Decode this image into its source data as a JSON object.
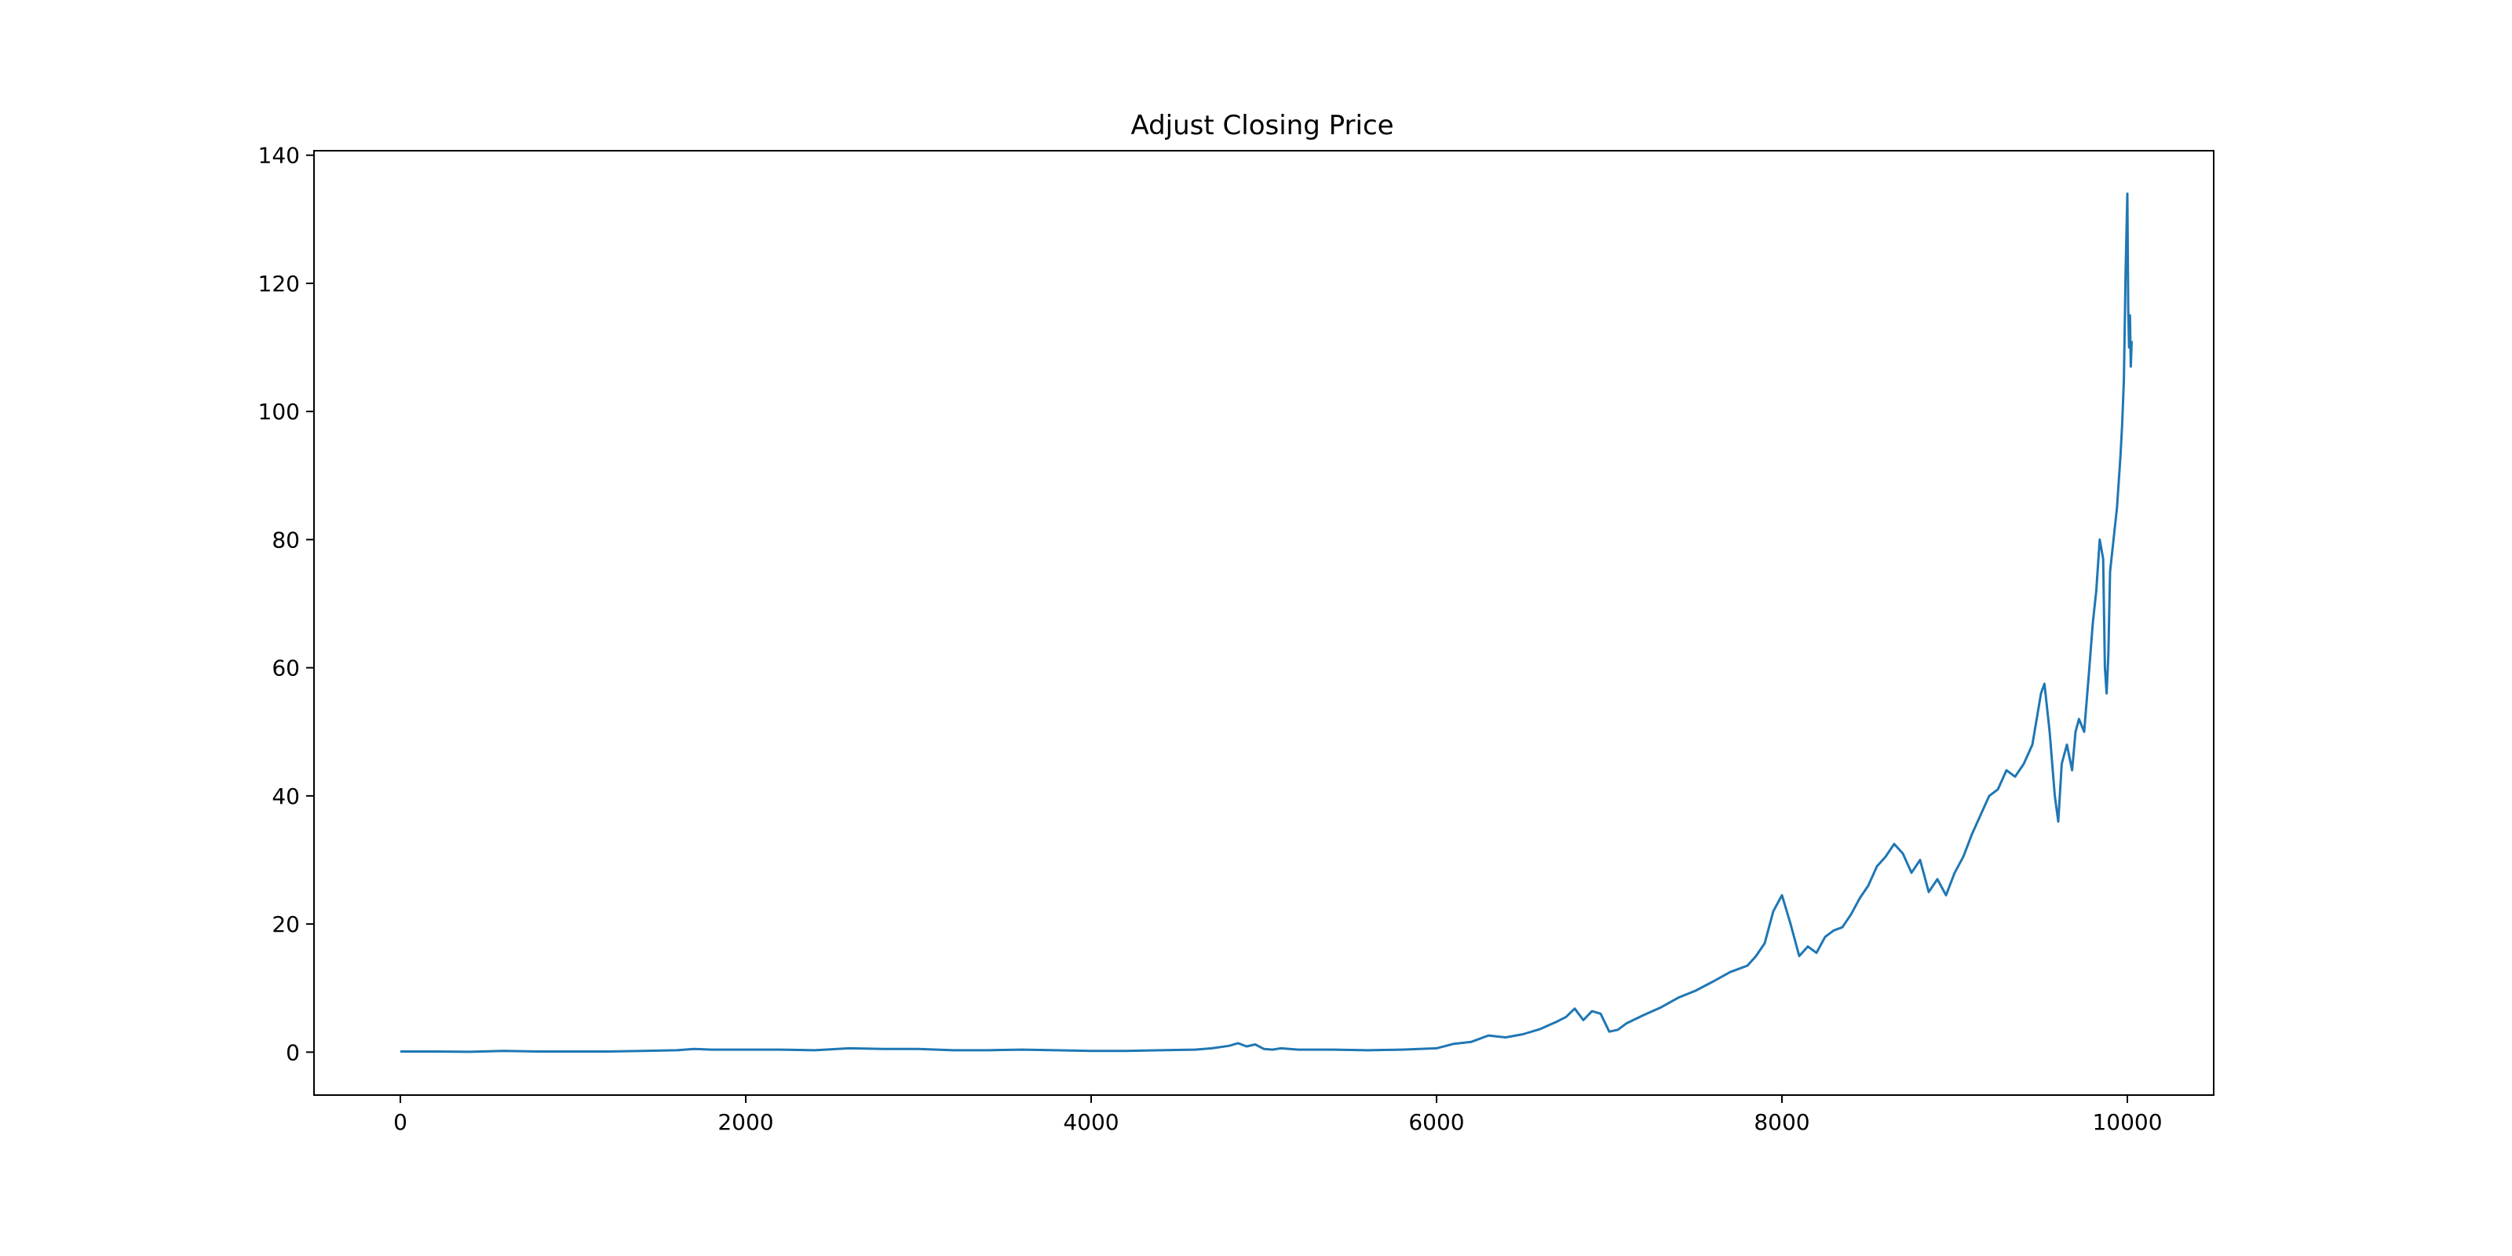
{
  "chart_data": {
    "type": "line",
    "title": "Adjust Closing Price",
    "xlabel": "",
    "ylabel": "",
    "xlim": [
      -500,
      10500
    ],
    "ylim": [
      -6.7,
      140.7
    ],
    "x_ticks": [
      0,
      2000,
      4000,
      6000,
      8000,
      10000
    ],
    "y_ticks": [
      0,
      20,
      40,
      60,
      80,
      100,
      120,
      140
    ],
    "x_tick_labels": [
      "0",
      "2000",
      "4000",
      "6000",
      "8000",
      "10000"
    ],
    "y_tick_labels": [
      "0",
      "20",
      "40",
      "60",
      "80",
      "100",
      "120",
      "140"
    ],
    "grid": false,
    "legend": "none",
    "line_color": "#1f77b4",
    "series": [
      {
        "x": [
          0,
          200,
          400,
          600,
          800,
          1000,
          1200,
          1400,
          1600,
          1700,
          1800,
          2000,
          2200,
          2400,
          2600,
          2800,
          3000,
          3200,
          3400,
          3600,
          3800,
          4000,
          4200,
          4400,
          4600,
          4700,
          4800,
          4850,
          4900,
          4950,
          5000,
          5050,
          5100,
          5200,
          5400,
          5600,
          5800,
          6000,
          6100,
          6200,
          6300,
          6400,
          6500,
          6600,
          6700,
          6750,
          6800,
          6850,
          6900,
          6950,
          7000,
          7050,
          7100,
          7200,
          7300,
          7400,
          7500,
          7600,
          7700,
          7800,
          7850,
          7900,
          7950,
          8000,
          8050,
          8100,
          8150,
          8200,
          8250,
          8300,
          8350,
          8400,
          8450,
          8500,
          8550,
          8600,
          8650,
          8700,
          8750,
          8800,
          8850,
          8900,
          8950,
          9000,
          9050,
          9100,
          9150,
          9200,
          9250,
          9300,
          9350,
          9400,
          9450,
          9500,
          9520,
          9550,
          9580,
          9600,
          9620,
          9650,
          9680,
          9700,
          9720,
          9750,
          9780,
          9800,
          9820,
          9840,
          9860,
          9870,
          9880,
          9890,
          9900,
          9920,
          9940,
          9960,
          9970,
          9980,
          9990,
          10000,
          10005,
          10010,
          10015,
          10020,
          10025
        ],
        "y": [
          0.1,
          0.1,
          0.05,
          0.2,
          0.1,
          0.1,
          0.1,
          0.2,
          0.3,
          0.5,
          0.4,
          0.4,
          0.4,
          0.3,
          0.6,
          0.5,
          0.5,
          0.3,
          0.3,
          0.4,
          0.3,
          0.2,
          0.2,
          0.3,
          0.4,
          0.6,
          1.0,
          1.4,
          0.9,
          1.2,
          0.5,
          0.4,
          0.6,
          0.4,
          0.4,
          0.3,
          0.4,
          0.6,
          1.3,
          1.6,
          2.6,
          2.3,
          2.8,
          3.6,
          4.8,
          5.5,
          6.8,
          5.0,
          6.4,
          6.0,
          3.2,
          3.5,
          4.5,
          5.8,
          7.0,
          8.5,
          9.6,
          11.0,
          12.5,
          13.5,
          15.0,
          17.0,
          22.0,
          24.5,
          20.0,
          15.0,
          16.5,
          15.5,
          18.0,
          19.0,
          19.5,
          21.5,
          24.0,
          26.0,
          29.0,
          30.5,
          32.5,
          31.0,
          28.0,
          30.0,
          25.0,
          27.0,
          24.5,
          28.0,
          30.5,
          34.0,
          37.0,
          40.0,
          41.0,
          44.0,
          43.0,
          45.0,
          48.0,
          56.0,
          57.5,
          50.0,
          40.0,
          36.0,
          45.0,
          48.0,
          44.0,
          50.0,
          52.0,
          50.0,
          60.0,
          67.0,
          72.0,
          80.0,
          77.0,
          60.0,
          56.0,
          62.0,
          75.0,
          80.0,
          85.0,
          93.0,
          98.0,
          105.0,
          122.0,
          134.0,
          116.0,
          110.0,
          115.0,
          107.0,
          111.0
        ]
      }
    ]
  }
}
